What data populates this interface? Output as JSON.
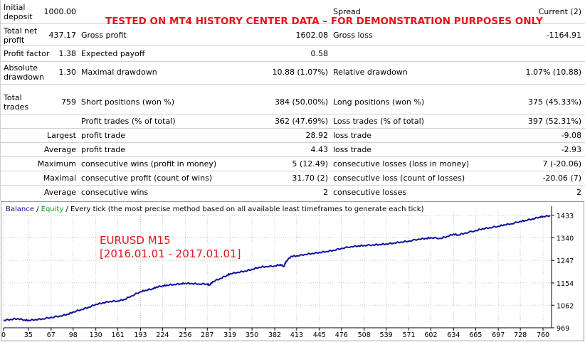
{
  "banner": "TESTED ON MT4 HISTORY CENTER DATA – FOR DEMONSTRATION PURPOSES ONLY",
  "report": {
    "initial_deposit_label": "Initial deposit",
    "initial_deposit_value": "1000.00",
    "spread_label": "Spread",
    "spread_value": "Current (2)",
    "total_net_profit_label": "Total net profit",
    "total_net_profit_value": "437.17",
    "gross_profit_label": "Gross profit",
    "gross_profit_value": "1602.08",
    "gross_loss_label": "Gross loss",
    "gross_loss_value": "-1164.91",
    "profit_factor_label": "Profit factor",
    "profit_factor_value": "1.38",
    "expected_payoff_label": "Expected payoff",
    "expected_payoff_value": "0.58",
    "absolute_drawdown_label": "Absolute drawdown",
    "absolute_drawdown_value": "1.30",
    "maximal_drawdown_label": "Maximal drawdown",
    "maximal_drawdown_value": "10.88 (1.07%)",
    "relative_drawdown_label": "Relative drawdown",
    "relative_drawdown_value": "1.07% (10.88)",
    "total_trades_label": "Total trades",
    "total_trades_value": "759",
    "short_positions_label": "Short positions (won %)",
    "short_positions_value": "384 (50.00%)",
    "long_positions_label": "Long positions (won %)",
    "long_positions_value": "375 (45.33%)",
    "profit_trades_label": "Profit trades (% of total)",
    "profit_trades_value": "362 (47.69%)",
    "loss_trades_label": "Loss trades (% of total)",
    "loss_trades_value": "397 (52.31%)",
    "largest_label": "Largest",
    "largest_profit_label": "profit trade",
    "largest_profit_value": "28.92",
    "largest_loss_label": "loss trade",
    "largest_loss_value": "-9.08",
    "average_label": "Average",
    "average_profit_label": "profit trade",
    "average_profit_value": "4.43",
    "average_loss_label": "loss trade",
    "average_loss_value": "-2.93",
    "maximum_label": "Maximum",
    "max_consec_wins_label": "consecutive wins (profit in money)",
    "max_consec_wins_value": "5 (12.49)",
    "max_consec_losses_label": "consecutive losses (loss in money)",
    "max_consec_losses_value": "7 (-20.06)",
    "maximal_label": "Maximal",
    "maximal_consec_profit_label": "consecutive profit (count of wins)",
    "maximal_consec_profit_value": "31.70 (2)",
    "maximal_consec_loss_label": "consecutive loss (count of losses)",
    "maximal_consec_loss_value": "-20.06 (7)",
    "avg2_label": "Average",
    "avg_consec_wins_label": "consecutive wins",
    "avg_consec_wins_value": "2",
    "avg_consec_losses_label": "consecutive losses",
    "avg_consec_losses_value": "2"
  },
  "chart_caption": {
    "balance": "Balance",
    "sep1": " / ",
    "equity": "Equity",
    "rest": " / Every tick (the most precise method based on all available least timeframes to generate each tick)"
  },
  "overlay": {
    "line1": "EURUSD M15",
    "line2": "[2016.01.01 - 2017.01.01]"
  },
  "colors": {
    "banner": "#e8121d",
    "balance": "#1010a0",
    "equity": "#10a010",
    "axis_text": "#000000"
  },
  "chart_data": {
    "type": "line",
    "x_ticks": [
      "0",
      "35",
      "67",
      "98",
      "130",
      "161",
      "193",
      "224",
      "256",
      "287",
      "319",
      "350",
      "382",
      "413",
      "445",
      "476",
      "508",
      "539",
      "571",
      "602",
      "634",
      "665",
      "697",
      "728",
      "760"
    ],
    "y_ticks": [
      "969",
      "1062",
      "1154",
      "1247",
      "1340",
      "1433"
    ],
    "xlim": [
      0,
      772
    ],
    "ylim": [
      969,
      1453
    ],
    "series": [
      {
        "name": "Balance",
        "x": [
          0,
          10,
          20,
          30,
          35,
          45,
          55,
          67,
          80,
          90,
          98,
          110,
          120,
          130,
          140,
          150,
          161,
          170,
          180,
          193,
          200,
          210,
          215,
          224,
          230,
          240,
          250,
          256,
          265,
          275,
          287,
          290,
          295,
          305,
          315,
          319,
          330,
          340,
          350,
          360,
          370,
          382,
          390,
          395,
          398,
          405,
          413,
          425,
          435,
          445,
          455,
          465,
          476,
          490,
          500,
          508,
          520,
          530,
          539,
          550,
          560,
          571,
          585,
          595,
          602,
          615,
          625,
          634,
          640,
          650,
          665,
          675,
          685,
          697,
          705,
          715,
          728,
          735,
          745,
          755,
          760,
          770
        ],
        "y": [
          1000,
          1004,
          1007,
          1001,
          1000,
          1003,
          1006,
          1012,
          1018,
          1025,
          1034,
          1045,
          1054,
          1066,
          1072,
          1078,
          1080,
          1086,
          1100,
          1118,
          1124,
          1130,
          1137,
          1142,
          1145,
          1148,
          1151,
          1153,
          1152,
          1150,
          1150,
          1145,
          1160,
          1172,
          1186,
          1192,
          1198,
          1203,
          1210,
          1219,
          1222,
          1224,
          1230,
          1222,
          1243,
          1264,
          1266,
          1272,
          1276,
          1280,
          1284,
          1289,
          1297,
          1304,
          1307,
          1309,
          1311,
          1313,
          1315,
          1319,
          1323,
          1327,
          1335,
          1338,
          1341,
          1338,
          1346,
          1356,
          1352,
          1360,
          1370,
          1378,
          1382,
          1388,
          1394,
          1398,
          1408,
          1412,
          1418,
          1426,
          1428,
          1432
        ]
      }
    ]
  }
}
